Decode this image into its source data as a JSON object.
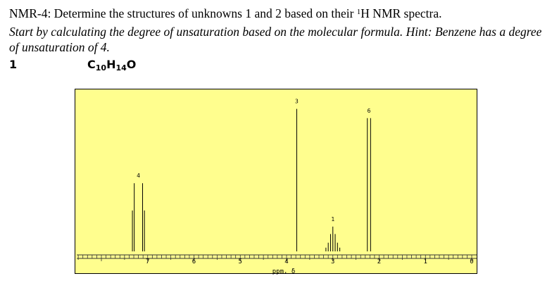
{
  "question": {
    "title_main": "NMR-4: Determine the structures of unknowns 1 and 2 based on their ",
    "title_sup": "1",
    "title_end": "H NMR spectra.",
    "instruction": "Start by calculating the degree of unsaturation based on the molecular formula. Hint: Benzene has a degree of unsaturation of 4."
  },
  "unknown": {
    "number": "1",
    "formula_c": "C",
    "formula_c_count": "10",
    "formula_h": "H",
    "formula_h_count": "14",
    "formula_o": "O"
  },
  "chart_data": {
    "type": "nmr_spectrum",
    "xlabel": "ppm, δ",
    "xlim": [
      8,
      0
    ],
    "x_ticks": [
      "7",
      "6",
      "5",
      "4",
      "3",
      "2",
      "1",
      "0"
    ],
    "peaks": [
      {
        "label": "4",
        "shift": 7.2,
        "multiplicity": "two doublets",
        "rel_height": 0.44
      },
      {
        "label": "3",
        "shift": 3.78,
        "multiplicity": "singlet",
        "rel_height": 0.92
      },
      {
        "label": "1",
        "shift": 3.0,
        "multiplicity": "septet",
        "rel_height": 0.16
      },
      {
        "label": "6",
        "shift": 2.22,
        "multiplicity": "doublet",
        "rel_height": 0.86
      }
    ]
  }
}
